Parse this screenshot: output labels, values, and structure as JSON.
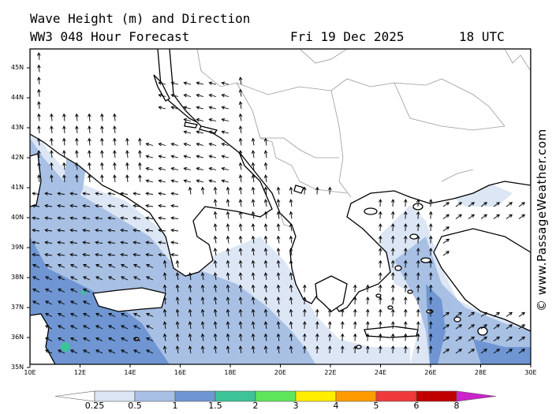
{
  "header": {
    "line1": "Wave Height (m) and Direction",
    "line2": "WW3 048 Hour Forecast",
    "date": "Fri 19 Dec 2025",
    "time": "18 UTC"
  },
  "credit": "© www.PassageWeather.com",
  "lat_labels": [
    "45N",
    "44N",
    "43N",
    "42N",
    "41N",
    "40N",
    "39N",
    "38N",
    "37N",
    "36N",
    "35N"
  ],
  "lon_labels": [
    "10E",
    "12E",
    "14E",
    "16E",
    "18E",
    "20E",
    "22E",
    "24E",
    "26E",
    "28E",
    "30E"
  ],
  "legend": {
    "labels": [
      "0.25",
      "0.5",
      "1",
      "1.5",
      "2",
      "3",
      "4",
      "5",
      "6",
      "8"
    ],
    "colors": [
      "#ffffff",
      "#dce6f4",
      "#a8c0e4",
      "#6f96d2",
      "#3cc398",
      "#5ee65a",
      "#ffee00",
      "#ff9a00",
      "#ee3a3a",
      "#c00000",
      "#cc22cc"
    ]
  },
  "colors": {
    "sea": "#ffffff",
    "land": "#ffffff",
    "coast": "#000000",
    "border": "#9a9a9a",
    "wave_light": "#dce6f4",
    "wave_mid": "#a8c0e4",
    "wave_high": "#6f96d2"
  }
}
